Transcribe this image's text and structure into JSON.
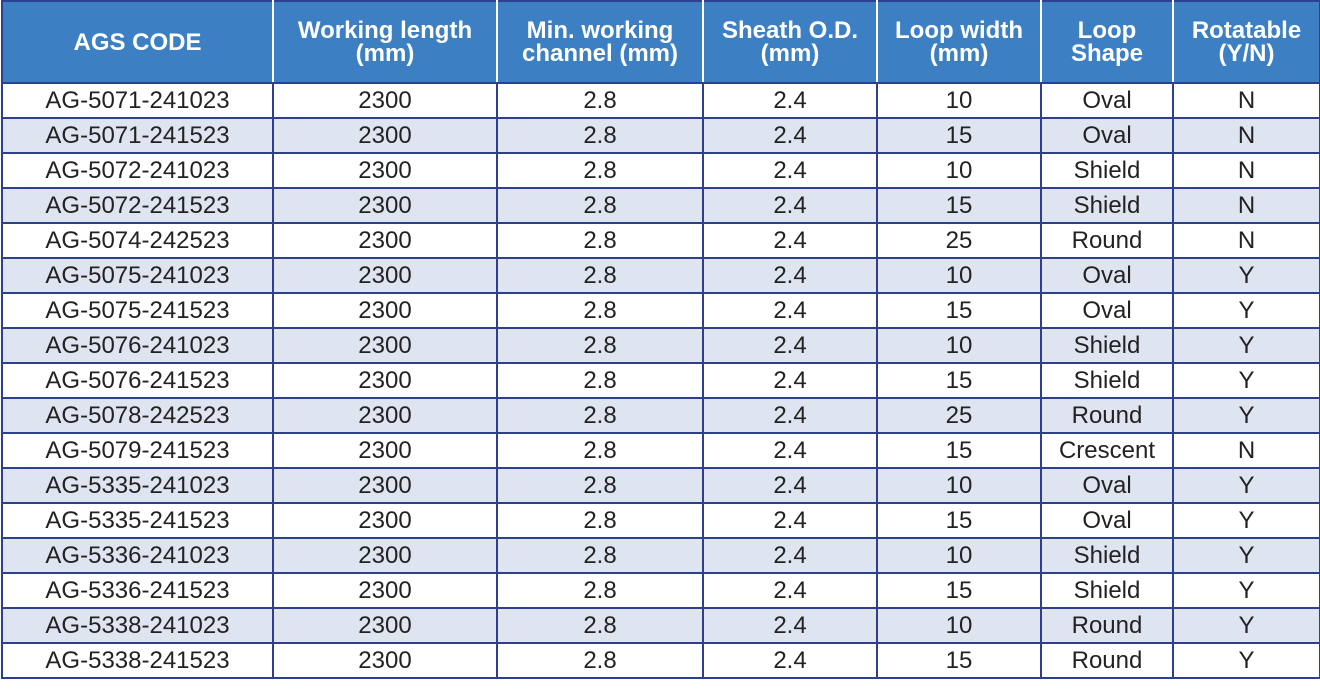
{
  "table": {
    "header": [
      [
        "AGS CODE"
      ],
      [
        "Working length",
        "(mm)"
      ],
      [
        "Min. working",
        "channel (mm)"
      ],
      [
        "Sheath O.D.",
        "(mm)"
      ],
      [
        "Loop width",
        "(mm)"
      ],
      [
        "Loop",
        "Shape"
      ],
      [
        "Rotatable",
        "(Y/N)"
      ]
    ],
    "rows": [
      [
        "AG-5071-241023",
        2300,
        2.8,
        2.4,
        10,
        "Oval",
        "N"
      ],
      [
        "AG-5071-241523",
        2300,
        2.8,
        2.4,
        15,
        "Oval",
        "N"
      ],
      [
        "AG-5072-241023",
        2300,
        2.8,
        2.4,
        10,
        "Shield",
        "N"
      ],
      [
        "AG-5072-241523",
        2300,
        2.8,
        2.4,
        15,
        "Shield",
        "N"
      ],
      [
        "AG-5074-242523",
        2300,
        2.8,
        2.4,
        25,
        "Round",
        "N"
      ],
      [
        "AG-5075-241023",
        2300,
        2.8,
        2.4,
        10,
        "Oval",
        "Y"
      ],
      [
        "AG-5075-241523",
        2300,
        2.8,
        2.4,
        15,
        "Oval",
        "Y"
      ],
      [
        "AG-5076-241023",
        2300,
        2.8,
        2.4,
        10,
        "Shield",
        "Y"
      ],
      [
        "AG-5076-241523",
        2300,
        2.8,
        2.4,
        15,
        "Shield",
        "Y"
      ],
      [
        "AG-5078-242523",
        2300,
        2.8,
        2.4,
        25,
        "Round",
        "Y"
      ],
      [
        "AG-5079-241523",
        2300,
        2.8,
        2.4,
        15,
        "Crescent",
        "N"
      ],
      [
        "AG-5335-241023",
        2300,
        2.8,
        2.4,
        10,
        "Oval",
        "Y"
      ],
      [
        "AG-5335-241523",
        2300,
        2.8,
        2.4,
        15,
        "Oval",
        "Y"
      ],
      [
        "AG-5336-241023",
        2300,
        2.8,
        2.4,
        10,
        "Shield",
        "Y"
      ],
      [
        "AG-5336-241523",
        2300,
        2.8,
        2.4,
        15,
        "Shield",
        "Y"
      ],
      [
        "AG-5338-241023",
        2300,
        2.8,
        2.4,
        10,
        "Round",
        "Y"
      ],
      [
        "AG-5338-241523",
        2300,
        2.8,
        2.4,
        15,
        "Round",
        "Y"
      ]
    ]
  }
}
